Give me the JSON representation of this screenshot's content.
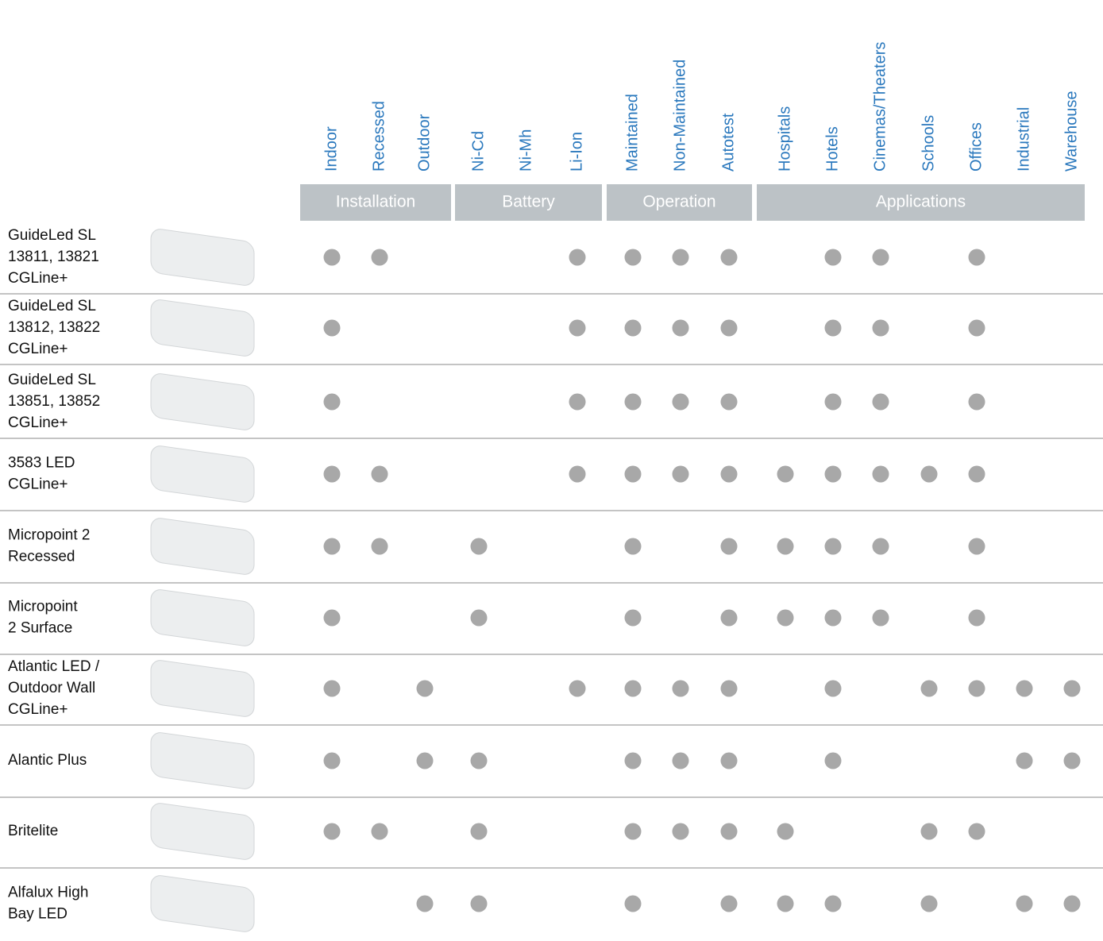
{
  "table": {
    "groups": [
      {
        "label": "Installation",
        "columns": [
          "Indoor",
          "Recessed",
          "Outdoor"
        ]
      },
      {
        "label": "Battery",
        "columns": [
          "Ni-Cd",
          "Ni-Mh",
          "Li-Ion"
        ]
      },
      {
        "label": "Operation",
        "columns": [
          "Maintained",
          "Non-Maintained",
          "Autotest"
        ]
      },
      {
        "label": "Applications",
        "columns": [
          "Hospitals",
          "Hotels",
          "Cinemas/Theaters",
          "Schools",
          "Offices",
          "Industrial",
          "Warehouse"
        ]
      }
    ],
    "rows": [
      {
        "name": [
          "GuideLed SL",
          "13811, 13821",
          "CGLine+"
        ],
        "marks": [
          true,
          true,
          false,
          false,
          false,
          true,
          true,
          true,
          true,
          false,
          true,
          true,
          false,
          true,
          false,
          false
        ]
      },
      {
        "name": [
          "GuideLed SL",
          "13812, 13822",
          "CGLine+"
        ],
        "marks": [
          true,
          false,
          false,
          false,
          false,
          true,
          true,
          true,
          true,
          false,
          true,
          true,
          false,
          true,
          false,
          false
        ]
      },
      {
        "name": [
          "GuideLed SL",
          "13851, 13852",
          "CGLine+"
        ],
        "marks": [
          true,
          false,
          false,
          false,
          false,
          true,
          true,
          true,
          true,
          false,
          true,
          true,
          false,
          true,
          false,
          false
        ]
      },
      {
        "name": [
          "3583 LED",
          "CGLine+"
        ],
        "marks": [
          true,
          true,
          false,
          false,
          false,
          true,
          true,
          true,
          true,
          true,
          true,
          true,
          true,
          true,
          false,
          false
        ]
      },
      {
        "name": [
          "Micropoint 2",
          "Recessed"
        ],
        "marks": [
          true,
          true,
          false,
          true,
          false,
          false,
          true,
          false,
          true,
          true,
          true,
          true,
          false,
          true,
          false,
          false
        ]
      },
      {
        "name": [
          "Micropoint",
          "2 Surface"
        ],
        "marks": [
          true,
          false,
          false,
          true,
          false,
          false,
          true,
          false,
          true,
          true,
          true,
          true,
          false,
          true,
          false,
          false
        ]
      },
      {
        "name": [
          "Atlantic LED /",
          "Outdoor Wall",
          "CGLine+"
        ],
        "marks": [
          true,
          false,
          true,
          false,
          false,
          true,
          true,
          true,
          true,
          false,
          true,
          false,
          true,
          true,
          true,
          true
        ]
      },
      {
        "name": [
          "Alantic Plus"
        ],
        "marks": [
          true,
          false,
          true,
          true,
          false,
          false,
          true,
          true,
          true,
          false,
          true,
          false,
          false,
          false,
          true,
          true
        ]
      },
      {
        "name": [
          "Britelite"
        ],
        "marks": [
          true,
          true,
          false,
          true,
          false,
          false,
          true,
          true,
          true,
          true,
          false,
          false,
          true,
          true,
          false,
          false
        ]
      },
      {
        "name": [
          "Alfalux High",
          "Bay LED"
        ],
        "marks": [
          false,
          false,
          true,
          true,
          false,
          false,
          true,
          false,
          true,
          true,
          true,
          false,
          true,
          false,
          true,
          true
        ]
      }
    ]
  }
}
